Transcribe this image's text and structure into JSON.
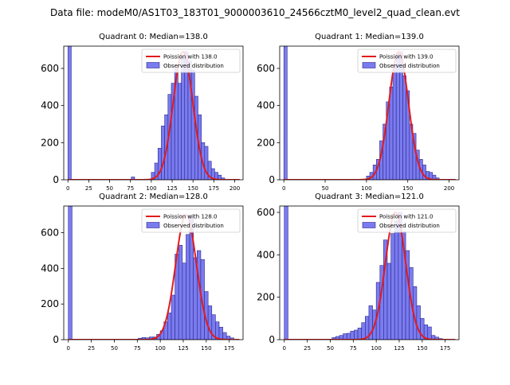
{
  "suptitle": "Data file: modeM0/AS1T03_183T01_9000003610_24566cztM0_level2_quad_clean.evt",
  "colors": {
    "bar_fill": "#7b7bf0",
    "bar_edge": "#2a2a8c",
    "curve": "#e31a1c"
  },
  "chart_data": [
    {
      "type": "bar",
      "title": "Quadrant 0: Median=138.0",
      "legend": {
        "position": "top-right",
        "curve_label": "Poission with 138.0",
        "bars_label": "Observed distribution"
      },
      "xlim": [
        -5,
        210
      ],
      "ylim": [
        0,
        720
      ],
      "xticks": [
        0,
        25,
        50,
        75,
        100,
        125,
        150,
        175,
        200
      ],
      "yticks": [
        0,
        200,
        400,
        600
      ],
      "bin_width": 4,
      "bins": [
        [
          0,
          720
        ],
        [
          76,
          15
        ],
        [
          100,
          40
        ],
        [
          104,
          90
        ],
        [
          108,
          170
        ],
        [
          112,
          290
        ],
        [
          116,
          350
        ],
        [
          120,
          460
        ],
        [
          124,
          520
        ],
        [
          128,
          600
        ],
        [
          132,
          520
        ],
        [
          136,
          660
        ],
        [
          140,
          690
        ],
        [
          144,
          640
        ],
        [
          148,
          590
        ],
        [
          152,
          450
        ],
        [
          156,
          350
        ],
        [
          160,
          200
        ],
        [
          164,
          180
        ],
        [
          168,
          100
        ],
        [
          172,
          60
        ],
        [
          176,
          40
        ],
        [
          180,
          25
        ],
        [
          184,
          10
        ]
      ],
      "poisson_mean": 138.0,
      "poisson_peak": 690
    },
    {
      "type": "bar",
      "title": "Quadrant 1: Median=139.0",
      "legend": {
        "position": "top-right",
        "curve_label": "Poission with 139.0",
        "bars_label": "Observed distribution"
      },
      "xlim": [
        -5,
        212
      ],
      "ylim": [
        0,
        720
      ],
      "xticks": [
        0,
        50,
        100,
        150,
        200
      ],
      "yticks": [
        0,
        200,
        400,
        600
      ],
      "bin_width": 4,
      "bins": [
        [
          0,
          720
        ],
        [
          100,
          20
        ],
        [
          104,
          40
        ],
        [
          108,
          80
        ],
        [
          112,
          110
        ],
        [
          116,
          210
        ],
        [
          120,
          300
        ],
        [
          124,
          420
        ],
        [
          128,
          500
        ],
        [
          132,
          620
        ],
        [
          136,
          680
        ],
        [
          140,
          690
        ],
        [
          144,
          560
        ],
        [
          148,
          480
        ],
        [
          152,
          300
        ],
        [
          156,
          250
        ],
        [
          160,
          160
        ],
        [
          164,
          110
        ],
        [
          168,
          80
        ],
        [
          172,
          45
        ],
        [
          176,
          40
        ],
        [
          180,
          25
        ],
        [
          184,
          10
        ]
      ],
      "poisson_mean": 139.0,
      "poisson_peak": 690
    },
    {
      "type": "bar",
      "title": "Quadrant 2: Median=128.0",
      "legend": {
        "position": "top-right",
        "curve_label": "Poission with 128.0",
        "bars_label": "Observed distribution"
      },
      "xlim": [
        -5,
        190
      ],
      "ylim": [
        0,
        750
      ],
      "xticks": [
        0,
        25,
        50,
        75,
        100,
        125,
        150,
        175
      ],
      "yticks": [
        0,
        200,
        400,
        600
      ],
      "bin_width": 4,
      "bins": [
        [
          0,
          750
        ],
        [
          76,
          8
        ],
        [
          80,
          12
        ],
        [
          84,
          10
        ],
        [
          88,
          15
        ],
        [
          92,
          15
        ],
        [
          96,
          30
        ],
        [
          100,
          50
        ],
        [
          104,
          100
        ],
        [
          108,
          150
        ],
        [
          112,
          250
        ],
        [
          116,
          480
        ],
        [
          120,
          530
        ],
        [
          124,
          430
        ],
        [
          128,
          590
        ],
        [
          132,
          700
        ],
        [
          136,
          460
        ],
        [
          140,
          500
        ],
        [
          144,
          450
        ],
        [
          148,
          270
        ],
        [
          152,
          190
        ],
        [
          156,
          140
        ],
        [
          160,
          100
        ],
        [
          164,
          70
        ],
        [
          168,
          40
        ],
        [
          172,
          20
        ],
        [
          176,
          10
        ]
      ],
      "poisson_mean": 128.0,
      "poisson_peak": 700
    },
    {
      "type": "bar",
      "title": "Quadrant 3: Median=121.0",
      "legend": {
        "position": "top-right",
        "curve_label": "Poission with 121.0",
        "bars_label": "Observed distribution"
      },
      "xlim": [
        -5,
        190
      ],
      "ylim": [
        0,
        630
      ],
      "xticks": [
        0,
        25,
        50,
        75,
        100,
        125,
        150,
        175
      ],
      "yticks": [
        0,
        200,
        400,
        600
      ],
      "bin_width": 4,
      "bins": [
        [
          0,
          630
        ],
        [
          52,
          10
        ],
        [
          56,
          15
        ],
        [
          60,
          20
        ],
        [
          64,
          28
        ],
        [
          68,
          30
        ],
        [
          72,
          40
        ],
        [
          76,
          45
        ],
        [
          80,
          55
        ],
        [
          84,
          80
        ],
        [
          88,
          110
        ],
        [
          92,
          160
        ],
        [
          96,
          140
        ],
        [
          100,
          270
        ],
        [
          104,
          350
        ],
        [
          108,
          470
        ],
        [
          112,
          360
        ],
        [
          116,
          500
        ],
        [
          120,
          560
        ],
        [
          124,
          600
        ],
        [
          128,
          510
        ],
        [
          132,
          420
        ],
        [
          136,
          340
        ],
        [
          140,
          250
        ],
        [
          144,
          160
        ],
        [
          148,
          100
        ],
        [
          152,
          70
        ],
        [
          156,
          60
        ],
        [
          160,
          20
        ],
        [
          164,
          12
        ],
        [
          168,
          5
        ]
      ],
      "poisson_mean": 121.0,
      "poisson_peak": 600
    }
  ]
}
